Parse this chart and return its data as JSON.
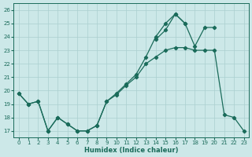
{
  "xlabel": "Humidex (Indice chaleur)",
  "bg_color": "#cce8e8",
  "grid_color": "#aacfcf",
  "line_color": "#1a6b5a",
  "xlim": [
    -0.5,
    23.5
  ],
  "ylim": [
    16.5,
    26.5
  ],
  "xticks": [
    0,
    1,
    2,
    3,
    4,
    5,
    6,
    7,
    8,
    9,
    10,
    11,
    12,
    13,
    14,
    15,
    16,
    17,
    18,
    19,
    20,
    21,
    22,
    23
  ],
  "yticks": [
    17,
    18,
    19,
    20,
    21,
    22,
    23,
    24,
    25,
    26
  ],
  "curve1_x": [
    0,
    1,
    2,
    3,
    4,
    5,
    6,
    7,
    8,
    9,
    10,
    11,
    12,
    13,
    14,
    15,
    16,
    17,
    18,
    19,
    20,
    21,
    22,
    23
  ],
  "curve1_y": [
    19.8,
    19.0,
    19.2,
    17.0,
    18.0,
    17.5,
    17.0,
    17.0,
    17.4,
    19.2,
    19.7,
    20.4,
    21.0,
    22.0,
    22.5,
    23.0,
    23.2,
    23.2,
    23.0,
    23.0,
    23.0,
    18.2,
    18.0,
    17.0
  ],
  "curve2_x": [
    0,
    1,
    2,
    3,
    4,
    5,
    6,
    7,
    8,
    9,
    10,
    11,
    12,
    13,
    14,
    15,
    16,
    17
  ],
  "curve2_y": [
    19.8,
    19.0,
    19.2,
    17.0,
    18.0,
    17.5,
    17.0,
    17.0,
    17.4,
    19.2,
    19.8,
    20.5,
    21.2,
    22.5,
    24.0,
    25.0,
    25.7,
    25.0
  ],
  "curve3_x": [
    14,
    15,
    16,
    17,
    18,
    19,
    20
  ],
  "curve3_y": [
    23.8,
    24.5,
    25.7,
    25.0,
    23.3,
    24.7,
    24.7
  ]
}
